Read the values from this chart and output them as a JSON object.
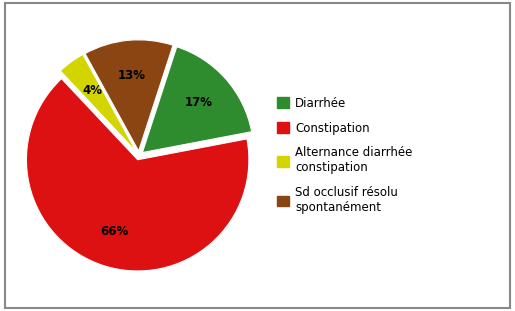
{
  "values": [
    17,
    66,
    4,
    13
  ],
  "colors": [
    "#2e8b2e",
    "#dd1111",
    "#d4d400",
    "#8b4513"
  ],
  "legend_labels": [
    "Diarrhée",
    "Constipation",
    "Alternance diarrhée\nconstipation",
    "Sd occlusif résolu\nspontanément"
  ],
  "startangle": 72,
  "explode": [
    0.04,
    0.04,
    0.04,
    0.04
  ],
  "background_color": "#ffffff",
  "border_color": "#888888",
  "pct_distance": 0.68,
  "label_fontsize": 8.5,
  "legend_fontsize": 8.5
}
